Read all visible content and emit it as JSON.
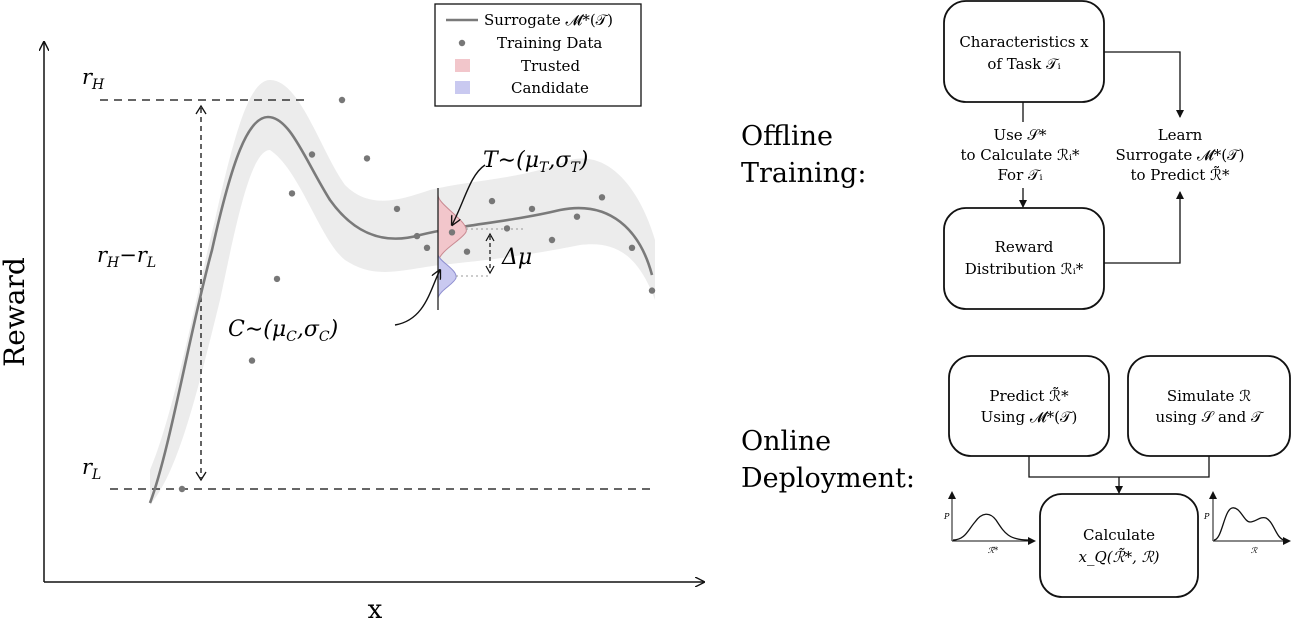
{
  "plot": {
    "x_axis_label": "x",
    "y_axis_label": "Reward",
    "r_high": "r",
    "r_high_sub": "H",
    "r_low": "r",
    "r_low_sub": "L",
    "range_label_a": "r",
    "range_label_a_sub": "H",
    "range_label_minus": "−",
    "range_label_b": "r",
    "range_label_b_sub": "L",
    "trusted_label": "T∼(μ",
    "trusted_label_sub1": "T",
    "trusted_label_mid": ",σ",
    "trusted_label_sub2": "T",
    "trusted_label_end": ")",
    "candidate_label": "C∼(μ",
    "candidate_label_sub1": "C",
    "candidate_label_mid": ",σ",
    "candidate_label_sub2": "C",
    "candidate_label_end": ")",
    "delta_mu_label": "Δμ",
    "colors": {
      "curve": "#7a7a7a",
      "band": "#ececec",
      "points": "#777777",
      "trusted": "#f2c6cb",
      "candidate": "#c9c9f0"
    }
  },
  "legend": {
    "surrogate": "Surrogate 𝓜*(𝒯)",
    "training": "Training Data",
    "trusted": "Trusted",
    "candidate": "Candidate"
  },
  "chart_data": {
    "type": "scatter",
    "xlabel": "x",
    "ylabel": "Reward",
    "series": [
      {
        "name": "Training Data",
        "x": [
          0.06,
          0.2,
          0.25,
          0.28,
          0.32,
          0.38,
          0.43,
          0.49,
          0.53,
          0.55,
          0.6,
          0.63,
          0.68,
          0.71,
          0.76,
          0.8,
          0.85,
          0.9,
          0.96,
          1.0
        ],
        "y": [
          0.0,
          0.33,
          0.54,
          0.76,
          0.86,
          1.0,
          0.85,
          0.72,
          0.65,
          0.62,
          0.66,
          0.61,
          0.74,
          0.67,
          0.72,
          0.64,
          0.7,
          0.75,
          0.62,
          0.51
        ]
      }
    ]
  },
  "offline": {
    "stage_label_1": "Offline",
    "stage_label_2": "Training:",
    "box1_line1": "Characteristics x",
    "box1_line2": "of Task 𝒯ᵢ",
    "box2_line1": "Reward",
    "box2_line2": "Distribution ℛᵢ*",
    "left_arrow_line1": "Use 𝒮*",
    "left_arrow_line2": "to Calculate ℛᵢ*",
    "left_arrow_line3": "For 𝒯ᵢ",
    "right_arrow_line1": "Learn",
    "right_arrow_line2": "Surrogate 𝓜*(𝒯)",
    "right_arrow_line3": "to Predict ℛ̃*"
  },
  "online": {
    "stage_label_1": "Online",
    "stage_label_2": "Deployment:",
    "box_predict_line1": "Predict ℛ̃*",
    "box_predict_line2": "Using 𝓜*(𝒯)",
    "box_simulate_line1": "Simulate ℛ",
    "box_simulate_line2": "using 𝒮 and 𝒯",
    "box_calc_line1": "Calculate",
    "box_calc_line2": "x_Q(ℛ̃*, ℛ)",
    "mini_left_ylabel": "P",
    "mini_left_xlabel": "ℛ̃*",
    "mini_right_ylabel": "P",
    "mini_right_xlabel": "ℛ"
  }
}
